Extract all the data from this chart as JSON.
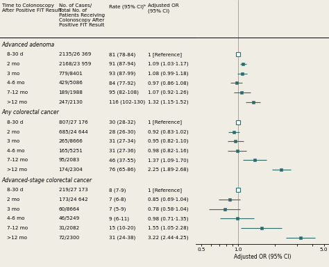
{
  "groups": [
    {
      "name": "Advanced adenoma",
      "rows": [
        {
          "label": "8-30 d",
          "cases": "2135/26 369",
          "rate": "81 (78-84)",
          "or_text": "1 [Reference]",
          "or": 1.0,
          "lo": 1.0,
          "hi": 1.0,
          "is_ref": true
        },
        {
          "label": "2 mo",
          "cases": "2168/23 959",
          "rate": "91 (87-94)",
          "or_text": "1.09 (1.03·1.17)",
          "or": 1.09,
          "lo": 1.03,
          "hi": 1.17,
          "is_ref": false
        },
        {
          "label": "3 mo",
          "cases": "779/8401",
          "rate": "93 (87-99)",
          "or_text": "1.08 (0.99·1.18)",
          "or": 1.08,
          "lo": 0.99,
          "hi": 1.18,
          "is_ref": false
        },
        {
          "label": "4-6 mo",
          "cases": "429/5086",
          "rate": "84 (77-92)",
          "or_text": "0.97 (0.86·1.08)",
          "or": 0.97,
          "lo": 0.86,
          "hi": 1.08,
          "is_ref": false
        },
        {
          "label": "7-12 mo",
          "cases": "189/1988",
          "rate": "95 (82-108)",
          "or_text": "1.07 (0.92·1.26)",
          "or": 1.07,
          "lo": 0.92,
          "hi": 1.26,
          "is_ref": false
        },
        {
          "label": ">12 mo",
          "cases": "247/2130",
          "rate": "116 (102-130)",
          "or_text": "1.32 (1.15·1.52)",
          "or": 1.32,
          "lo": 1.15,
          "hi": 1.52,
          "is_ref": false
        }
      ]
    },
    {
      "name": "Any colorectal cancer",
      "rows": [
        {
          "label": "8-30 d",
          "cases": "807/27 176",
          "rate": "30 (28-32)",
          "or_text": "1 [Reference]",
          "or": 1.0,
          "lo": 1.0,
          "hi": 1.0,
          "is_ref": true
        },
        {
          "label": "2 mo",
          "cases": "685/24 644",
          "rate": "28 (26-30)",
          "or_text": "0.92 (0.83·1.02)",
          "or": 0.92,
          "lo": 0.83,
          "hi": 1.02,
          "is_ref": false
        },
        {
          "label": "3 mo",
          "cases": "265/8666",
          "rate": "31 (27-34)",
          "or_text": "0.95 (0.82·1.10)",
          "or": 0.95,
          "lo": 0.82,
          "hi": 1.1,
          "is_ref": false
        },
        {
          "label": "4-6 mo",
          "cases": "165/5251",
          "rate": "31 (27-36)",
          "or_text": "0.98 (0.82·1.16)",
          "or": 0.98,
          "lo": 0.82,
          "hi": 1.16,
          "is_ref": false
        },
        {
          "label": "7-12 mo",
          "cases": "95/2083",
          "rate": "46 (37-55)",
          "or_text": "1.37 (1.09·1.70)",
          "or": 1.37,
          "lo": 1.09,
          "hi": 1.7,
          "is_ref": false
        },
        {
          "label": ">12 mo",
          "cases": "174/2304",
          "rate": "76 (65-86)",
          "or_text": "2.25 (1.89·2.68)",
          "or": 2.25,
          "lo": 1.89,
          "hi": 2.68,
          "is_ref": false
        }
      ]
    },
    {
      "name": "Advanced-stage colorectal cancer",
      "rows": [
        {
          "label": "8-30 d",
          "cases": "219/27 173",
          "rate": "8 (7-9)",
          "or_text": "1 [Reference]",
          "or": 1.0,
          "lo": 1.0,
          "hi": 1.0,
          "is_ref": true
        },
        {
          "label": "2 mo",
          "cases": "173/24 642",
          "rate": "7 (6-8)",
          "or_text": "0.85 (0.69·1.04)",
          "or": 0.85,
          "lo": 0.69,
          "hi": 1.04,
          "is_ref": false
        },
        {
          "label": "3 mo",
          "cases": "60/8664",
          "rate": "7 (5-9)",
          "or_text": "0.78 (0.58·1.04)",
          "or": 0.78,
          "lo": 0.58,
          "hi": 1.04,
          "is_ref": false
        },
        {
          "label": "4-6 mo",
          "cases": "46/5249",
          "rate": "9 (6-11)",
          "or_text": "0.98 (0.71·1.35)",
          "or": 0.98,
          "lo": 0.71,
          "hi": 1.35,
          "is_ref": false
        },
        {
          "label": "7-12 mo",
          "cases": "31/2082",
          "rate": "15 (10-20)",
          "or_text": "1.55 (1.05·2.28)",
          "or": 1.55,
          "lo": 1.05,
          "hi": 2.28,
          "is_ref": false
        },
        {
          "label": ">12 mo",
          "cases": "72/2300",
          "rate": "31 (24-38)",
          "or_text": "3.22 (2.44·4.25)",
          "or": 3.22,
          "lo": 2.44,
          "hi": 4.25,
          "is_ref": false
        }
      ]
    }
  ],
  "col0_header": "Time to Colonoscopy\nAfter Positive FIT Result",
  "col1_header": "No. of Cases/\nTotal No. of\nPatients Receiving\nColonoscopy After\nPositive FIT Result",
  "col2_header": "Rate (95% CI)ᵇ",
  "col3_header": "Adjusted OR\n(95% CI)",
  "xlabel": "Adjusted OR (95% CI)",
  "xticks": [
    0.5,
    1.0,
    5.0
  ],
  "xticklabels": [
    "0.5",
    "1.0",
    "5.0"
  ],
  "xlim": [
    0.45,
    5.5
  ],
  "marker_color": "#2d6b6b",
  "bg_color": "#f0ede4",
  "fs": 5.2,
  "fs_group": 5.5
}
